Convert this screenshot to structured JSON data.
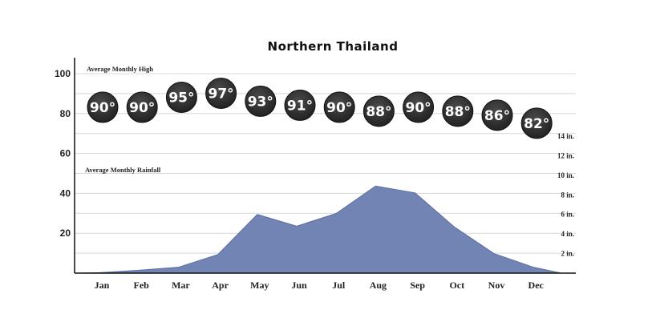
{
  "chart_data": {
    "type": "area",
    "title": "Northern Thailand",
    "categories": [
      "Jan",
      "Feb",
      "Mar",
      "Apr",
      "May",
      "Jun",
      "Jul",
      "Aug",
      "Sep",
      "Oct",
      "Nov",
      "Dec"
    ],
    "left_axis": {
      "ylim": [
        0,
        108
      ],
      "ticks": [
        "20",
        "40",
        "60",
        "80",
        "100"
      ]
    },
    "right_axis": {
      "ylim": [
        0,
        14.5
      ],
      "ticks": [
        "2 in.",
        "4 in.",
        "6 in.",
        "8 in.",
        "10 in.",
        "12 in.",
        "14 in."
      ]
    },
    "series": [
      {
        "name": "Average Monthly High",
        "axis": "left",
        "display": "circle-labels",
        "values": [
          90,
          90,
          95,
          97,
          93,
          91,
          90,
          88,
          90,
          88,
          86,
          82
        ],
        "labels": [
          "90°",
          "90°",
          "95°",
          "97°",
          "93°",
          "91°",
          "90°",
          "88°",
          "90°",
          "88°",
          "86°",
          "82°"
        ]
      },
      {
        "name": "Average Monthly Rainfall",
        "axis": "right",
        "display": "area",
        "color": "#7284b3",
        "values": [
          0.05,
          0.3,
          0.6,
          1.9,
          6.0,
          4.8,
          6.1,
          8.9,
          8.2,
          4.7,
          2.0,
          0.6
        ]
      }
    ],
    "grid": true,
    "circle_color": "#222222",
    "area_color": "#7284b3"
  }
}
